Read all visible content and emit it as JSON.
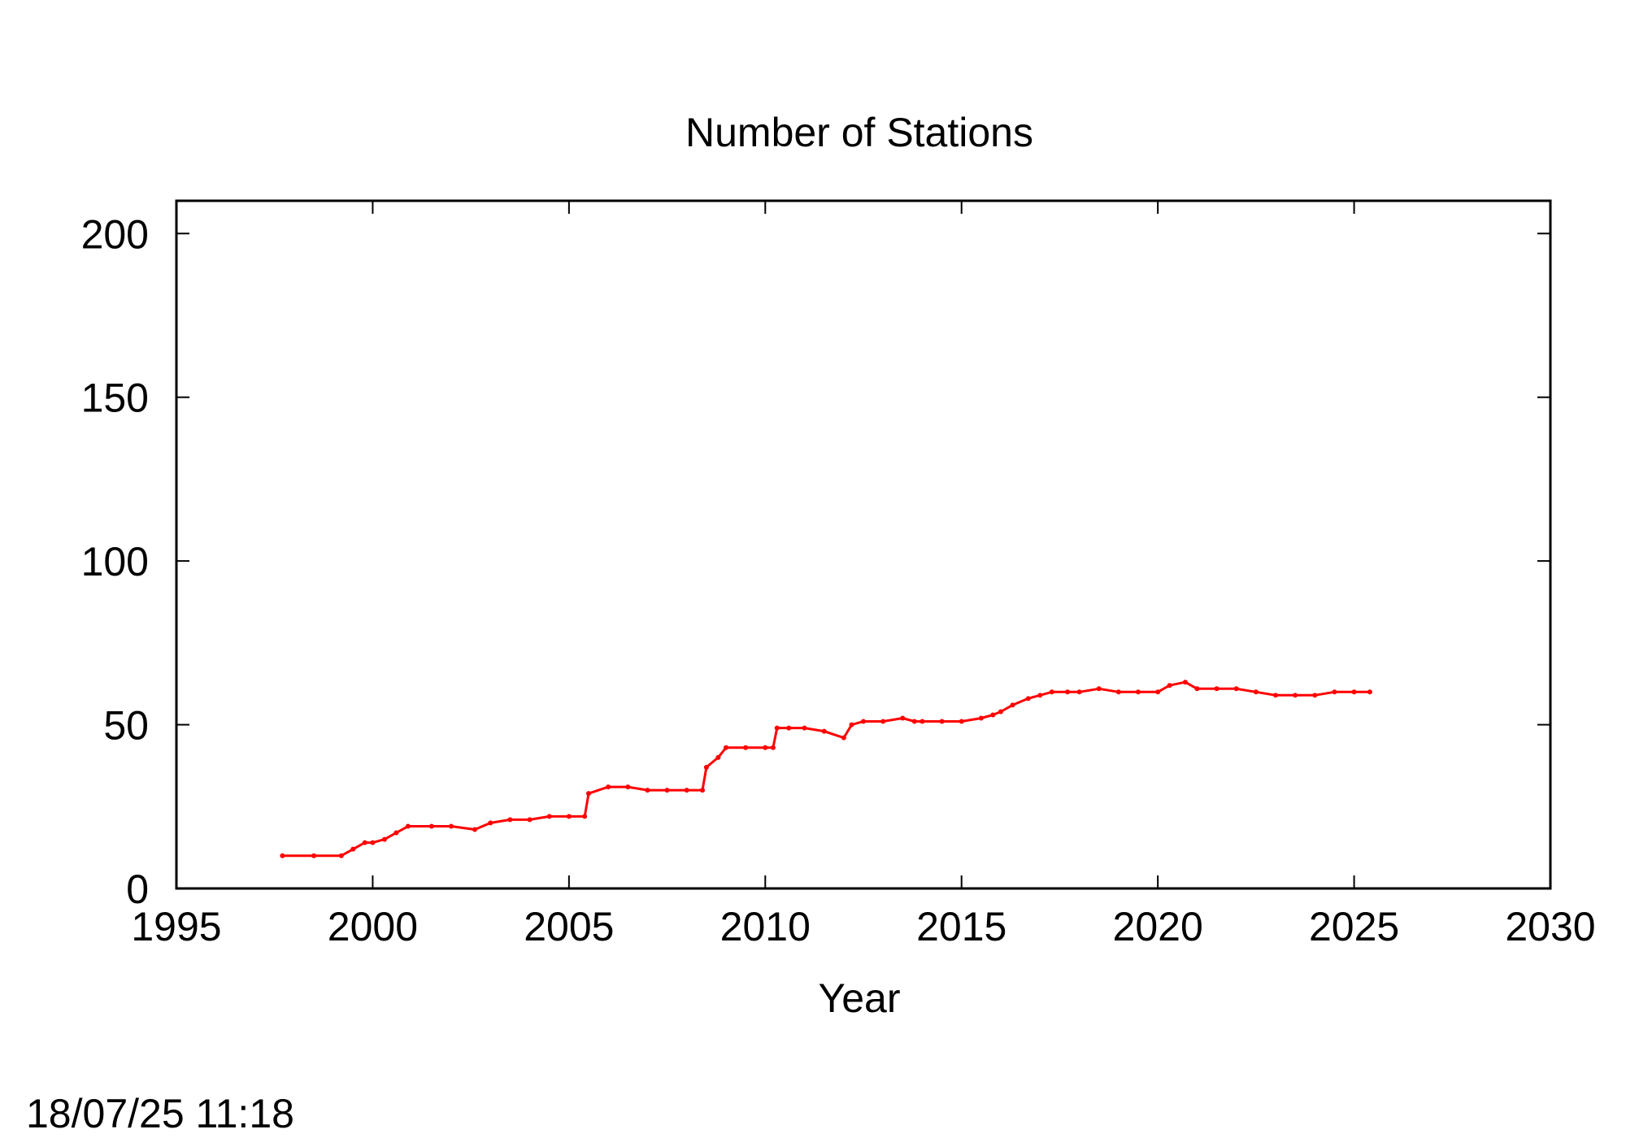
{
  "chart_data": {
    "type": "line",
    "title": "Number of Stations",
    "xlabel": "Year",
    "ylabel": "",
    "xlim": [
      1995,
      2030
    ],
    "ylim": [
      0,
      210
    ],
    "x_ticks": [
      1995,
      2000,
      2005,
      2010,
      2015,
      2020,
      2025,
      2030
    ],
    "y_ticks": [
      0,
      50,
      100,
      150,
      200
    ],
    "x_tick_labels": [
      "1995",
      "2000",
      "2005",
      "2010",
      "2015",
      "2020",
      "2025",
      "2030"
    ],
    "y_tick_labels": [
      "0",
      "50",
      "100",
      "150",
      "200"
    ],
    "grid": false,
    "legend": "none",
    "series_color": "#ff0000",
    "series": [
      {
        "x": [
          1997.7,
          1998.5,
          1999.2,
          1999.5,
          1999.8,
          2000.0,
          2000.3,
          2000.6,
          2000.9,
          2001.5,
          2002.0,
          2002.6,
          2003.0,
          2003.5,
          2004.0,
          2004.5,
          2005.0,
          2005.4,
          2005.5,
          2006.0,
          2006.5,
          2007.0,
          2007.5,
          2008.0,
          2008.4,
          2008.5,
          2008.8,
          2009.0,
          2009.5,
          2010.0,
          2010.2,
          2010.3,
          2010.6,
          2011.0,
          2011.5,
          2012.0,
          2012.2,
          2012.5,
          2013.0,
          2013.5,
          2013.8,
          2014.0,
          2014.5,
          2015.0,
          2015.5,
          2015.8,
          2016.0,
          2016.3,
          2016.7,
          2017.0,
          2017.3,
          2017.7,
          2018.0,
          2018.5,
          2019.0,
          2019.5,
          2020.0,
          2020.3,
          2020.7,
          2021.0,
          2021.5,
          2022.0,
          2022.5,
          2023.0,
          2023.5,
          2024.0,
          2024.5,
          2025.0,
          2025.4
        ],
        "y": [
          10,
          10,
          10,
          12,
          14,
          14,
          15,
          17,
          19,
          19,
          19,
          18,
          20,
          21,
          21,
          22,
          22,
          22,
          29,
          31,
          31,
          30,
          30,
          30,
          30,
          37,
          40,
          43,
          43,
          43,
          43,
          49,
          49,
          49,
          48,
          46,
          50,
          51,
          51,
          52,
          51,
          51,
          51,
          51,
          52,
          53,
          54,
          56,
          58,
          59,
          60,
          60,
          60,
          61,
          60,
          60,
          60,
          62,
          63,
          61,
          61,
          61,
          60,
          59,
          59,
          59,
          60,
          60,
          60
        ]
      }
    ]
  },
  "footer": {
    "timestamp": "18/07/25 11:18"
  }
}
